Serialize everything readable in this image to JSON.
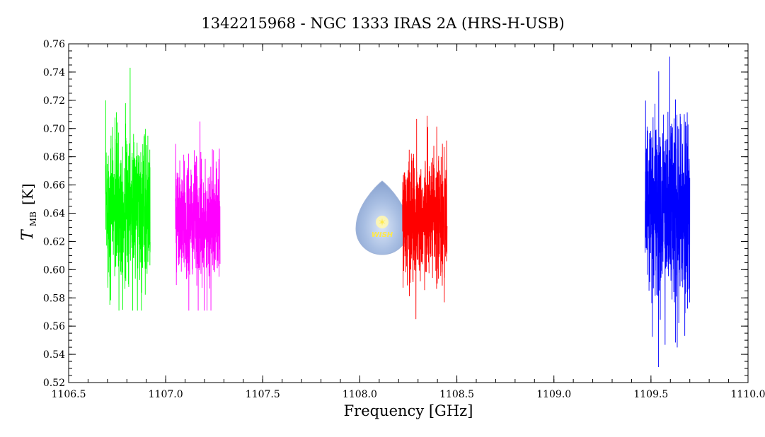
{
  "chart_data": {
    "type": "line",
    "title": "1342215968 - NGC 1333 IRAS 2A (HRS-H-USB)",
    "xlabel": "Frequency [GHz]",
    "ylabel": {
      "symbol": "T",
      "subscript": "MB",
      "unit": "[K]"
    },
    "xlim": [
      1106.5,
      1110.0
    ],
    "ylim": [
      0.52,
      0.76
    ],
    "x_ticks": [
      "1106.5",
      "1107.0",
      "1107.5",
      "1108.0",
      "1108.5",
      "1109.0",
      "1109.5",
      "1110.0"
    ],
    "y_ticks": [
      "0.52",
      "0.54",
      "0.56",
      "0.58",
      "0.60",
      "0.62",
      "0.64",
      "0.66",
      "0.68",
      "0.70",
      "0.72",
      "0.74",
      "0.76"
    ],
    "grid": false,
    "series": [
      {
        "color": "#00ff00",
        "x_range": [
          1106.69,
          1106.92
        ],
        "mean": 0.645,
        "min": 0.571,
        "max": 0.743
      },
      {
        "color": "#ff00ff",
        "x_range": [
          1107.05,
          1107.28
        ],
        "mean": 0.633,
        "min": 0.571,
        "max": 0.705
      },
      {
        "color": "#ff0000",
        "x_range": [
          1108.22,
          1108.45
        ],
        "mean": 0.636,
        "min": 0.565,
        "max": 0.709
      },
      {
        "color": "#0000ff",
        "x_range": [
          1109.47,
          1109.7
        ],
        "mean": 0.643,
        "min": 0.531,
        "max": 0.751
      }
    ]
  },
  "logo": {
    "text": "WISH"
  }
}
